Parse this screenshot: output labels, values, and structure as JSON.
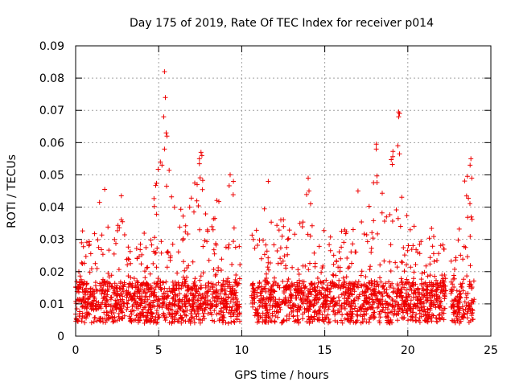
{
  "chart_data": {
    "type": "scatter",
    "title": "Day 175 of 2019, Rate Of TEC Index for receiver p014",
    "xlabel": "GPS time / hours",
    "ylabel": "ROTI / TECUs",
    "xlim": [
      0,
      25
    ],
    "ylim": [
      0,
      0.09
    ],
    "x_ticks": [
      0,
      5,
      10,
      15,
      20,
      25
    ],
    "y_ticks": [
      0,
      0.01,
      0.02,
      0.03,
      0.04,
      0.05,
      0.06,
      0.07,
      0.08,
      0.09
    ],
    "x_tick_labels": [
      "0",
      "5",
      "10",
      "15",
      "20",
      "25"
    ],
    "y_tick_labels": [
      "0",
      "0.01",
      "0.02",
      "0.03",
      "0.04",
      "0.05",
      "0.06",
      "0.07",
      "0.08",
      "0.09"
    ],
    "grid": true,
    "marker": "+",
    "color": "#ee0000",
    "series": [
      {
        "name": "ROTI",
        "description": "dense scatter of ~2000 points; representative sample and envelope",
        "segments": [
          [
            0,
            9.9
          ],
          [
            10.6,
            22.3
          ],
          [
            22.6,
            24.0
          ]
        ],
        "envelope_x": [
          0,
          0.5,
          1,
          1.5,
          2,
          2.5,
          3,
          3.5,
          4,
          4.5,
          5,
          5.5,
          6,
          6.5,
          7,
          7.5,
          8,
          8.5,
          9,
          9.5,
          9.9,
          10.6,
          11,
          11.5,
          12,
          12.5,
          13,
          13.5,
          14,
          14.5,
          15,
          15.5,
          16,
          16.5,
          17,
          17.5,
          18,
          18.5,
          19,
          19.5,
          20,
          20.5,
          21,
          21.5,
          22,
          22.3,
          22.6,
          23,
          23.5,
          24
        ],
        "envelope_y": [
          0.022,
          0.035,
          0.032,
          0.045,
          0.034,
          0.043,
          0.033,
          0.032,
          0.034,
          0.042,
          0.054,
          0.065,
          0.043,
          0.038,
          0.044,
          0.057,
          0.045,
          0.042,
          0.049,
          0.047,
          0.03,
          0.036,
          0.048,
          0.037,
          0.035,
          0.039,
          0.033,
          0.035,
          0.048,
          0.03,
          0.034,
          0.036,
          0.034,
          0.033,
          0.036,
          0.04,
          0.058,
          0.046,
          0.069,
          0.043,
          0.045,
          0.04,
          0.036,
          0.033,
          0.028,
          0.03,
          0.032,
          0.035,
          0.052,
          0.045
        ],
        "baseline_y": 0.007,
        "outliers": [
          {
            "x": 5.35,
            "y": 0.082
          },
          {
            "x": 5.4,
            "y": 0.074
          },
          {
            "x": 5.3,
            "y": 0.068
          },
          {
            "x": 5.45,
            "y": 0.063
          },
          {
            "x": 5.5,
            "y": 0.062
          },
          {
            "x": 5.35,
            "y": 0.058
          },
          {
            "x": 5.1,
            "y": 0.054
          },
          {
            "x": 5.2,
            "y": 0.053
          },
          {
            "x": 7.55,
            "y": 0.057
          },
          {
            "x": 7.6,
            "y": 0.056
          },
          {
            "x": 7.45,
            "y": 0.055
          },
          {
            "x": 9.3,
            "y": 0.05
          },
          {
            "x": 9.5,
            "y": 0.048
          },
          {
            "x": 19.45,
            "y": 0.0695
          },
          {
            "x": 19.5,
            "y": 0.069
          },
          {
            "x": 19.45,
            "y": 0.068
          },
          {
            "x": 18.1,
            "y": 0.0595
          },
          {
            "x": 18.1,
            "y": 0.058
          },
          {
            "x": 19.4,
            "y": 0.059
          },
          {
            "x": 19.5,
            "y": 0.0565
          },
          {
            "x": 23.8,
            "y": 0.055
          },
          {
            "x": 23.75,
            "y": 0.053
          },
          {
            "x": 23.85,
            "y": 0.049
          },
          {
            "x": 1.75,
            "y": 0.0455
          },
          {
            "x": 2.75,
            "y": 0.0435
          },
          {
            "x": 14.0,
            "y": 0.049
          },
          {
            "x": 14.05,
            "y": 0.045
          },
          {
            "x": 11.6,
            "y": 0.048
          },
          {
            "x": 17.0,
            "y": 0.045
          }
        ]
      }
    ]
  }
}
